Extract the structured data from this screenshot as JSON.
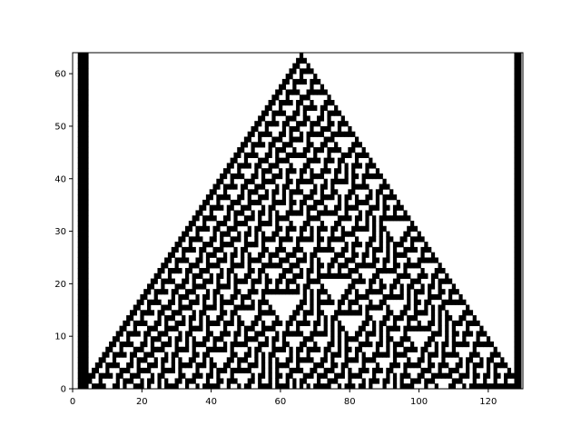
{
  "chart_data": {
    "type": "heatmap",
    "title": "",
    "xlabel": "",
    "ylabel": "",
    "xlim": [
      0,
      130
    ],
    "ylim": [
      0,
      64
    ],
    "grid": false,
    "colormap": {
      "on": "#000000",
      "off": "#ffffff"
    },
    "cells": {
      "columns": 128,
      "rows": 64,
      "rule": 30,
      "initial_on_column": 64,
      "time_axis": "row index increases upward (row 64 at top)",
      "left_boundary_on_columns": [
        0,
        1,
        2
      ],
      "right_boundary_on_columns": [
        126,
        127
      ]
    },
    "xticks": [
      0,
      20,
      40,
      60,
      80,
      100,
      120
    ],
    "yticks": [
      0,
      10,
      20,
      30,
      40,
      50,
      60
    ]
  }
}
